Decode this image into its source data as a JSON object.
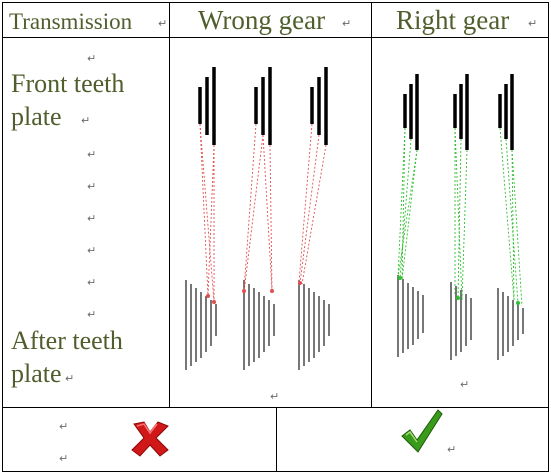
{
  "table": {
    "header": {
      "col1": "Transmission",
      "col2": "Wrong gear",
      "col3": "Right gear"
    },
    "labels": {
      "front_line1": "Front teeth",
      "front_line2": "plate",
      "after_line1": "After teeth",
      "after_line2": "plate"
    },
    "paragraph_mark": "↵"
  },
  "colors": {
    "header_text": "#4f5e2c",
    "wrong_chain": "#e05050",
    "right_chain": "#2fbf2f",
    "cross": "#d01818",
    "check": "#3a9a1a"
  },
  "icons": {
    "wrong": "red-cross-icon",
    "right": "green-check-icon"
  }
}
